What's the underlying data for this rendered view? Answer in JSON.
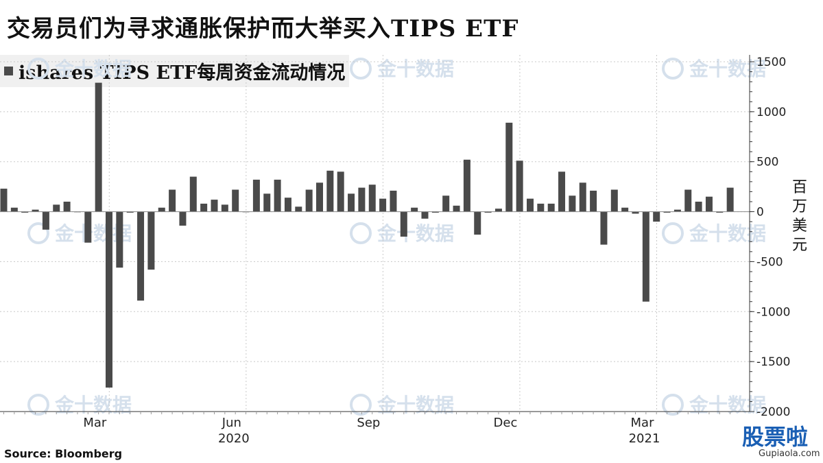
{
  "title": "交易员们为寻求通胀保护而大举买入TIPS ETF",
  "legend_label": "ishares TIPS ETF每周资金流动情况",
  "source": "Source:  Bloomberg",
  "watermark": {
    "brand": "金十数据",
    "logo": "股票啦",
    "site": "Gupiaola.com"
  },
  "colors": {
    "bar": "#4a4a4a",
    "grid": "#c8c8c8",
    "axis": "#333333"
  },
  "chart_data": {
    "type": "bar",
    "ylabel": "百万美元",
    "ylim": [
      -2000,
      1500
    ],
    "yticks": [
      1500,
      1000,
      500,
      0,
      -500,
      -1000,
      -1500,
      -2000
    ],
    "y_axis_side": "right",
    "grid": true,
    "x_month_labels": [
      {
        "label": "Mar",
        "index": 8
      },
      {
        "label": "Jun",
        "index": 21
      },
      {
        "label": "Sep",
        "index": 34
      },
      {
        "label": "Dec",
        "index": 47
      },
      {
        "label": "Mar",
        "index": 60
      }
    ],
    "x_year_labels": [
      {
        "label": "2020",
        "index": 21
      },
      {
        "label": "2021",
        "index": 60
      }
    ],
    "series": [
      {
        "values": [
          230,
          40,
          -10,
          20,
          -180,
          70,
          100,
          0,
          -310,
          1290,
          -1760,
          -560,
          -10,
          -890,
          -580,
          40,
          220,
          -140,
          350,
          80,
          120,
          70,
          220,
          0,
          320,
          180,
          320,
          140,
          50,
          220,
          290,
          410,
          400,
          180,
          240,
          270,
          130,
          210,
          -250,
          40,
          -70,
          -10,
          160,
          60,
          520,
          -230,
          -10,
          30,
          890,
          510,
          130,
          80,
          80,
          400,
          160,
          290,
          210,
          -330,
          220,
          40,
          -20,
          -900,
          -100,
          -10,
          20,
          220,
          100,
          150,
          -10,
          240
        ]
      }
    ]
  }
}
